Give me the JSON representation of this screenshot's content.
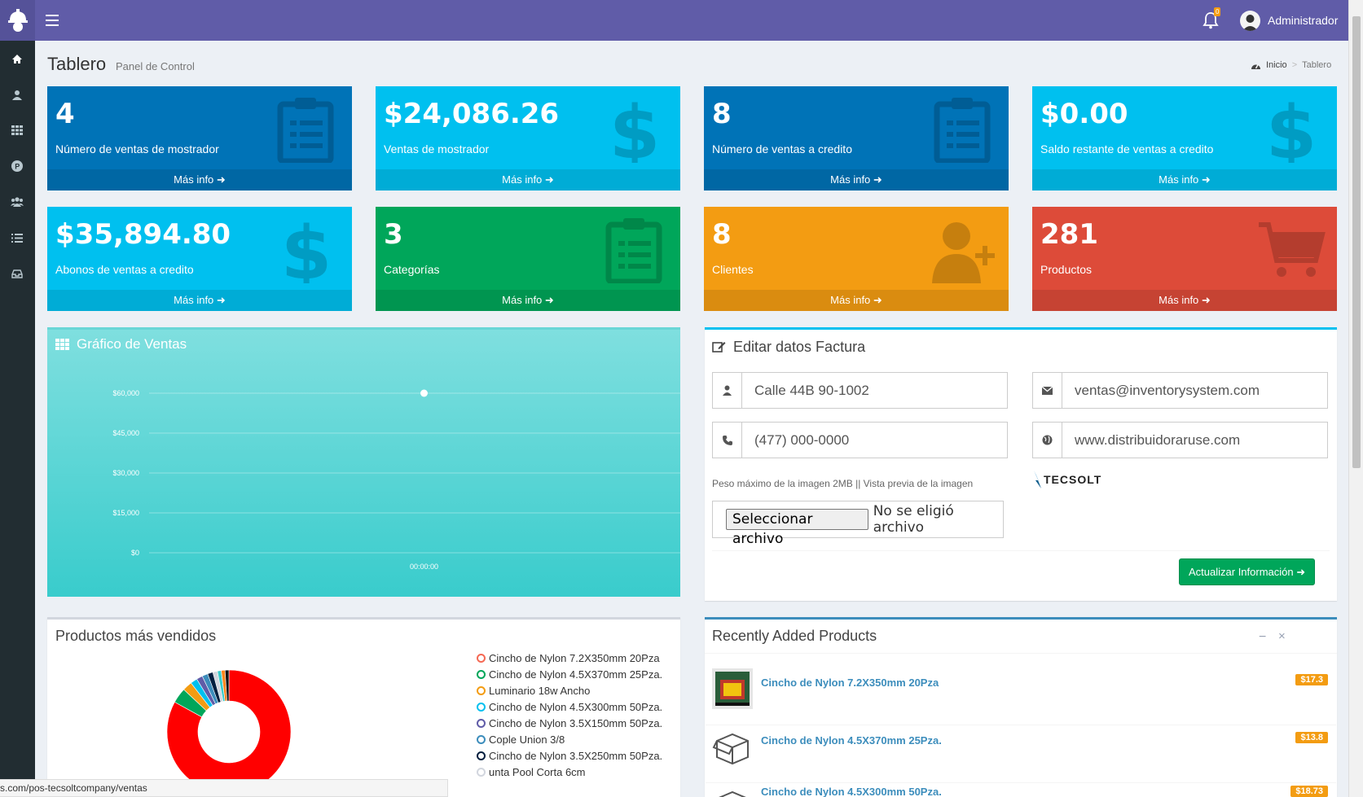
{
  "header": {
    "notification_count": "0",
    "user_name": "Administrador"
  },
  "page": {
    "title": "Tablero",
    "subtitle": "Panel de Control",
    "breadcrumb": [
      "Inicio",
      "Tablero"
    ]
  },
  "stat_boxes": [
    {
      "value": "4",
      "label": "Número de ventas de mostrador",
      "footer": "Más info",
      "color": "#0073b7",
      "icon": "clipboard-icon"
    },
    {
      "value": "$24,086.26",
      "label": "Ventas de mostrador",
      "footer": "Más info",
      "color": "#00c0ef",
      "icon": "dollar-icon"
    },
    {
      "value": "8",
      "label": "Número de ventas a credito",
      "footer": "Más info",
      "color": "#0073b7",
      "icon": "clipboard-icon"
    },
    {
      "value": "$0.00",
      "label": "Saldo restante de ventas a credito",
      "footer": "Más info",
      "color": "#00c0ef",
      "icon": "dollar-icon"
    },
    {
      "value": "$35,894.80",
      "label": "Abonos de ventas a credito",
      "footer": "Más info",
      "color": "#00c0ef",
      "icon": "dollar-icon"
    },
    {
      "value": "3",
      "label": "Categorías",
      "footer": "Más info",
      "color": "#00a65a",
      "icon": "clipboard-icon"
    },
    {
      "value": "8",
      "label": "Clientes",
      "footer": "Más info",
      "color": "#f39c12",
      "icon": "user-plus-icon"
    },
    {
      "value": "281",
      "label": "Productos",
      "footer": "Más info",
      "color": "#dd4b39",
      "icon": "cart-icon"
    }
  ],
  "sales_chart": {
    "title": "Gráfico de Ventas"
  },
  "chart_data": {
    "type": "line",
    "x": [
      "00:00:00"
    ],
    "series": [
      {
        "values": [
          60000
        ]
      }
    ],
    "ylim": [
      0,
      60000
    ],
    "yticks": [
      "$60,000",
      "$45,000",
      "$30,000",
      "$15,000",
      "$0"
    ],
    "grid": true
  },
  "invoice": {
    "title": "Editar datos Factura",
    "address": "Calle 44B 90-1002",
    "email": "ventas@inventorysystem.com",
    "phone": "(477) 000-0000",
    "website": "www.distribuidoraruse.com",
    "help": "Peso máximo de la imagen 2MB || Vista previa de la imagen",
    "logo_text": "TECSOLT",
    "file_button": "Seleccionar archivo",
    "file_status": "No se eligió archivo",
    "submit": "Actualizar Información"
  },
  "top_products": {
    "title": "Productos más vendidos",
    "legend": [
      {
        "name": "Cincho de Nylon 7.2X350mm 20Pza",
        "color": "#f56954"
      },
      {
        "name": "Cincho de Nylon 4.5X370mm 25Pza.",
        "color": "#00a65a"
      },
      {
        "name": "Luminario 18w Ancho",
        "color": "#f39c12"
      },
      {
        "name": "Cincho de Nylon 4.5X300mm 50Pza.",
        "color": "#00c0ef"
      },
      {
        "name": "Cincho de Nylon 3.5X150mm 50Pza.",
        "color": "#605ca8"
      },
      {
        "name": "Cople Union 3/8",
        "color": "#3c8dbc"
      },
      {
        "name": "Cincho de Nylon 3.5X250mm 50Pza.",
        "color": "#001f3f"
      },
      {
        "name": "unta Pool Corta 6cm",
        "color": "#d2d6de"
      }
    ]
  },
  "recent_products": {
    "title": "Recently Added Products",
    "items": [
      {
        "name": "Cincho de Nylon 7.2X350mm 20Pza",
        "price": "$17.3"
      },
      {
        "name": "Cincho de Nylon 4.5X370mm 25Pza.",
        "price": "$13.8"
      },
      {
        "name": "Cincho de Nylon 4.5X300mm 50Pza.",
        "price": "$18.73"
      }
    ]
  },
  "status_url": "s.com/pos-tecsoltcompany/ventas"
}
